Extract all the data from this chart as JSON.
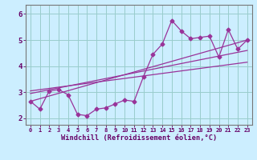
{
  "xlabel": "Windchill (Refroidissement éolien,°C)",
  "xlim": [
    -0.5,
    23.5
  ],
  "ylim": [
    1.75,
    6.35
  ],
  "yticks": [
    2,
    3,
    4,
    5,
    6
  ],
  "xticks": [
    0,
    1,
    2,
    3,
    4,
    5,
    6,
    7,
    8,
    9,
    10,
    11,
    12,
    13,
    14,
    15,
    16,
    17,
    18,
    19,
    20,
    21,
    22,
    23
  ],
  "background_color": "#cceeff",
  "grid_color": "#99cccc",
  "line_color": "#993399",
  "curve1_x": [
    0,
    1,
    2,
    3,
    4,
    5,
    6,
    7,
    8,
    9,
    10,
    11,
    12,
    13,
    14,
    15,
    16,
    17,
    18,
    19,
    20,
    21,
    22,
    23
  ],
  "curve1_y": [
    2.65,
    2.35,
    3.05,
    3.1,
    2.9,
    2.15,
    2.1,
    2.35,
    2.4,
    2.55,
    2.7,
    2.65,
    3.6,
    4.45,
    4.85,
    5.75,
    5.35,
    5.05,
    5.1,
    5.15,
    4.35,
    5.4,
    4.65,
    5.0
  ],
  "curve2_x": [
    0,
    23
  ],
  "curve2_y": [
    2.65,
    5.0
  ],
  "curve3_x": [
    0,
    23
  ],
  "curve3_y": [
    2.95,
    4.6
  ],
  "curve4_x": [
    0,
    23
  ],
  "curve4_y": [
    3.05,
    4.15
  ],
  "font_color": "#660066",
  "tick_fontsize": 5.0,
  "ytick_fontsize": 6.5,
  "xlabel_fontsize": 6.2
}
